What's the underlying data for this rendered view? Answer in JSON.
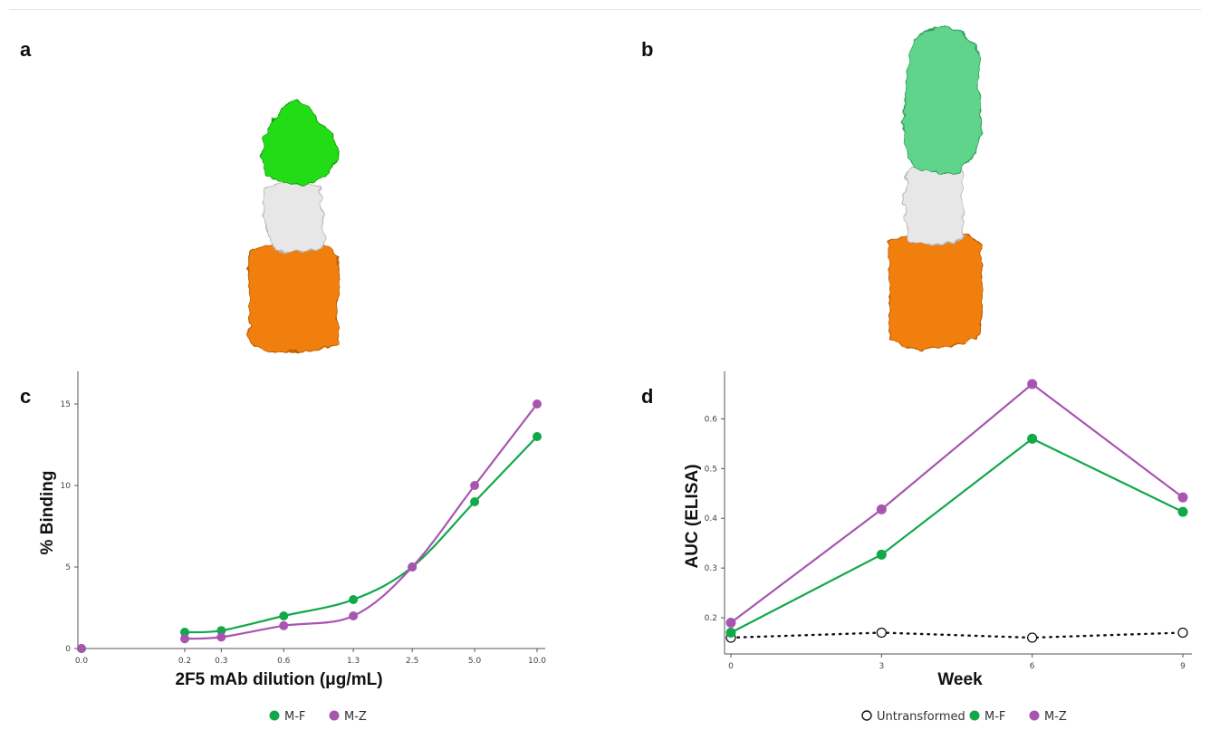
{
  "panels": {
    "a": "a",
    "b": "b",
    "c": "c",
    "d": "d"
  },
  "colors": {
    "mf": "#12a84a",
    "mz": "#a855b0",
    "untransformed": "#111111",
    "green_domain_a": "#22dd14",
    "green_domain_b": "#5ed48a",
    "white_domain": "#e7e7e7",
    "orange_domain": "#f07f0c"
  },
  "structures": [
    {
      "panel": "a",
      "domains": [
        "green-icon",
        "white-icon",
        "orange-icon"
      ]
    },
    {
      "panel": "b",
      "domains": [
        "light-green-icon",
        "white-icon",
        "orange-icon"
      ]
    }
  ],
  "chart_data": [
    {
      "panel": "c",
      "type": "line",
      "title": "",
      "xlabel": "2F5 mAb dilution (μg/mL)",
      "ylabel": "% Binding",
      "x_tick_labels": [
        "0.0",
        "0.2",
        "0.3",
        "0.6",
        "1.3",
        "2.5",
        "5.0",
        "10.0"
      ],
      "y_ticks": [
        0,
        5,
        10,
        15
      ],
      "ylim": [
        0,
        17
      ],
      "x_scale": "log2 (0.0 placed at left)",
      "legend_position": "bottom",
      "series": [
        {
          "name": "M-F",
          "color_key": "mf",
          "x": [
            0.0,
            0.2,
            0.3,
            0.6,
            1.3,
            2.5,
            5.0,
            10.0
          ],
          "values": [
            0,
            1.0,
            1.1,
            2.0,
            3.0,
            5.0,
            9.0,
            13.0
          ]
        },
        {
          "name": "M-Z",
          "color_key": "mz",
          "x": [
            0.0,
            0.2,
            0.3,
            0.6,
            1.3,
            2.5,
            5.0,
            10.0
          ],
          "values": [
            0,
            0.6,
            0.7,
            1.4,
            2.0,
            5.0,
            10.0,
            15.0
          ]
        }
      ]
    },
    {
      "panel": "d",
      "type": "line",
      "title": "",
      "xlabel": "Week",
      "ylabel": "AUC (ELISA)",
      "x_ticks": [
        0,
        3,
        6,
        9
      ],
      "y_ticks": [
        0.2,
        0.3,
        0.4,
        0.5,
        0.6
      ],
      "xlim": [
        0,
        9
      ],
      "ylim": [
        0.15,
        0.7
      ],
      "legend_position": "bottom",
      "series": [
        {
          "name": "Untransformed",
          "color_key": "untransformed",
          "style": "dotted-open",
          "x": [
            0,
            3,
            6,
            9
          ],
          "values": [
            0.16,
            0.17,
            0.16,
            0.17
          ]
        },
        {
          "name": "M-F",
          "color_key": "mf",
          "x": [
            0,
            3,
            6,
            9
          ],
          "values": [
            0.17,
            0.327,
            0.56,
            0.413
          ]
        },
        {
          "name": "M-Z",
          "color_key": "mz",
          "x": [
            0,
            3,
            6,
            9
          ],
          "values": [
            0.19,
            0.418,
            0.67,
            0.442
          ]
        }
      ]
    }
  ]
}
